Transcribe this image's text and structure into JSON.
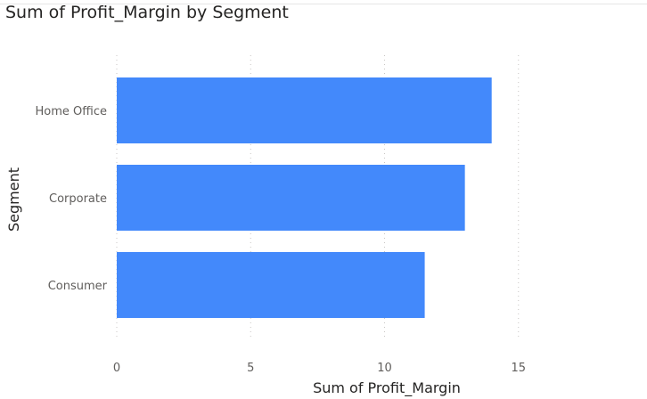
{
  "chart_data": {
    "type": "bar",
    "orientation": "horizontal",
    "title": "Sum of Profit_Margin by Segment",
    "xlabel": "Sum of Profit_Margin",
    "ylabel": "Segment",
    "categories": [
      "Home Office",
      "Corporate",
      "Consumer"
    ],
    "values": [
      14.0,
      13.0,
      11.5
    ],
    "xlim": [
      0,
      19.8
    ],
    "xticks": [
      0,
      5,
      10,
      15
    ],
    "grid": true,
    "bar_color": "#4389fb"
  }
}
